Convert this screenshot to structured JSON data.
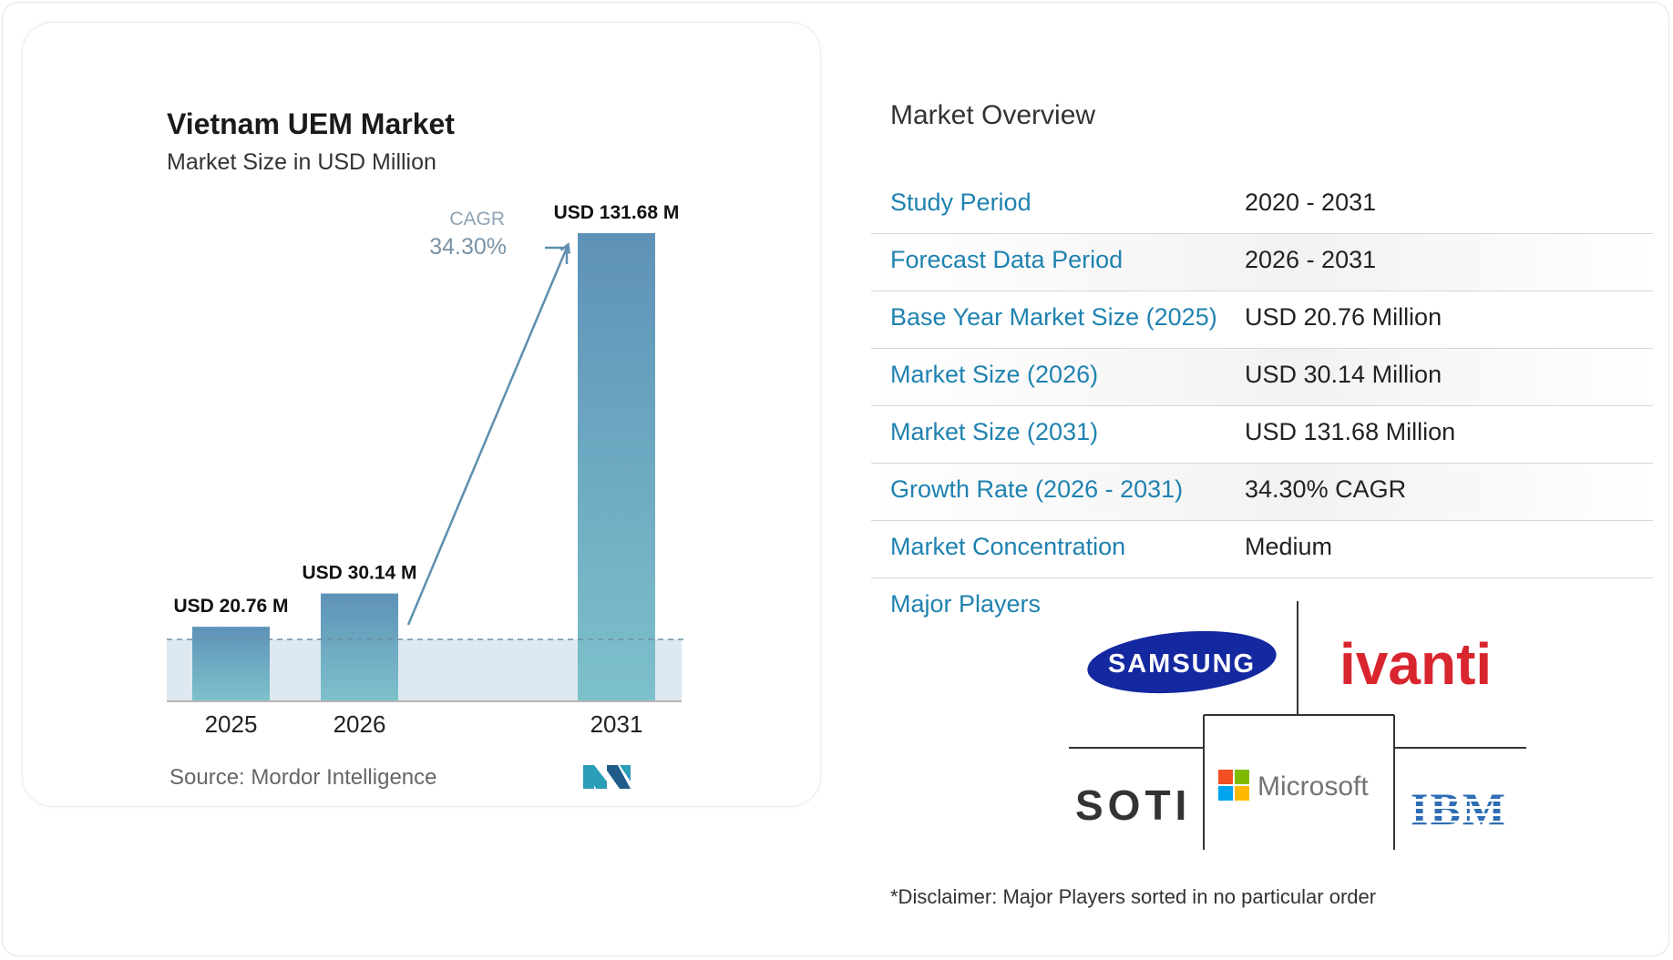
{
  "chart_data": {
    "type": "bar",
    "title": "Vietnam UEM Market",
    "subtitle": "Market Size in USD Million",
    "categories": [
      "2025",
      "2026",
      "2031"
    ],
    "values": [
      20.76,
      30.14,
      131.68
    ],
    "value_labels": [
      "USD 20.76 M",
      "USD 30.14 M",
      "USD 131.68 M"
    ],
    "cagr_label": "CAGR",
    "cagr_value": "34.30%",
    "ylim": [
      0,
      131.68
    ],
    "grid": false,
    "colors": {
      "bar_top": "#5e92b8",
      "bar_bottom": "#7dc1cb",
      "arrow": "#5e8fb0",
      "band": "#dde8f1"
    }
  },
  "source": "Source: Mordor Intelligence",
  "overview": {
    "title": "Market Overview",
    "rows": [
      {
        "label": "Study Period",
        "value": "2020 - 2031"
      },
      {
        "label": "Forecast Data Period",
        "value": "2026 - 2031"
      },
      {
        "label": "Base Year Market Size (2025)",
        "value": "USD 20.76 Million"
      },
      {
        "label": "Market Size (2026)",
        "value": "USD 30.14 Million"
      },
      {
        "label": "Market Size (2031)",
        "value": "USD 131.68 Million"
      },
      {
        "label": "Growth Rate (2026 - 2031)",
        "value": "34.30% CAGR"
      },
      {
        "label": "Market Concentration",
        "value": "Medium"
      }
    ],
    "players_label": "Major Players",
    "players": [
      "SAMSUNG",
      "ivanti",
      "SOTI",
      "Microsoft",
      "IBM"
    ],
    "disclaimer": "*Disclaimer: Major Players sorted in no particular order"
  },
  "colors": {
    "accent": "#1f82b0",
    "samsung": "#1428a0",
    "ivanti": "#d9262e",
    "ibm": "#2f6db5"
  }
}
